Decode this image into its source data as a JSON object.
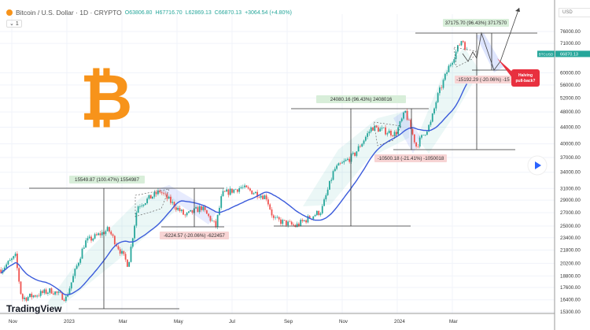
{
  "header": {
    "symbol_title": "Bitcoin / U.S. Dollar · 1D · CRYPTO",
    "open": "O63806.80",
    "high": "H67716.70",
    "low": "L62869.13",
    "close": "C66870.13",
    "change": "+3064.54 (+4.80%)",
    "indicator_toggle": "1"
  },
  "currency": "USD",
  "brand": "TradingView",
  "colors": {
    "up": "#26a69a",
    "down": "#ef5350",
    "ma": "#3b5bdb",
    "badge": "#26a69a",
    "callout": "#e8303f"
  },
  "chart_data": {
    "type": "candlestick",
    "scale": "log",
    "ylim": [
      15300,
      76000
    ],
    "y_ticks": [
      "76000.00",
      "71000.00",
      "60000.00",
      "56000.00",
      "52000.00",
      "48000.00",
      "44000.00",
      "40000.00",
      "37000.00",
      "34000.00",
      "31000.00",
      "29000.00",
      "27000.00",
      "25000.00",
      "23400.00",
      "21800.00",
      "20200.00",
      "18800.00",
      "17600.00",
      "16400.00",
      "15300.00"
    ],
    "x_ticks": [
      "Nov",
      "2023",
      "Mar",
      "May",
      "Jul",
      "Sep",
      "Nov",
      "2024",
      "Mar"
    ],
    "price_path": [
      [
        "2022-10-20",
        19500
      ],
      [
        "2022-11-05",
        21000
      ],
      [
        "2022-11-12",
        16500
      ],
      [
        "2022-12-15",
        17300
      ],
      [
        "2022-12-31",
        16550
      ],
      [
        "2023-01-21",
        22800
      ],
      [
        "2023-02-16",
        24500
      ],
      [
        "2023-03-10",
        20000
      ],
      [
        "2023-03-20",
        28000
      ],
      [
        "2023-04-14",
        30500
      ],
      [
        "2023-05-12",
        26500
      ],
      [
        "2023-05-30",
        27800
      ],
      [
        "2023-06-15",
        25000
      ],
      [
        "2023-06-22",
        30000
      ],
      [
        "2023-07-13",
        31200
      ],
      [
        "2023-08-10",
        29500
      ],
      [
        "2023-08-18",
        26000
      ],
      [
        "2023-09-11",
        25000
      ],
      [
        "2023-10-10",
        27300
      ],
      [
        "2023-10-24",
        34500
      ],
      [
        "2023-11-15",
        37500
      ],
      [
        "2023-12-05",
        44000
      ],
      [
        "2023-12-31",
        42300
      ],
      [
        "2024-01-11",
        48000
      ],
      [
        "2024-01-23",
        39500
      ],
      [
        "2024-02-08",
        45000
      ],
      [
        "2024-02-15",
        52000
      ],
      [
        "2024-02-28",
        62000
      ],
      [
        "2024-03-14",
        73000
      ],
      [
        "2024-03-20",
        66870
      ]
    ],
    "last_price_label": "BTCUSD",
    "last_price": "66870.13",
    "annotations": {
      "rise1": "15549.87 (100.47%) 1554987",
      "drop1": "-6224.57 (-20.06%) -622457",
      "rise2": "24080.16 (96.43%) 2408016",
      "drop2": "-10500.18 (-21.41%) -1050018",
      "rise3": "37175.70 (96.43%) 3717570",
      "drop3": "-15192.29 (-20.06%) -15",
      "callout": "Halving pull-back?"
    }
  }
}
